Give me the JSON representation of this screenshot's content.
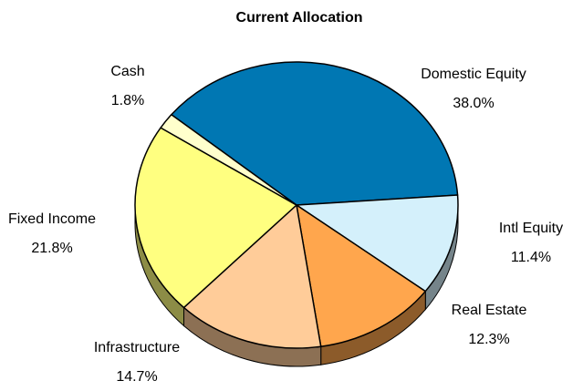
{
  "chart_data": {
    "type": "pie",
    "title": "Current Allocation",
    "categories": [
      "Domestic Equity",
      "Intl Equity",
      "Real Estate",
      "Infrastructure",
      "Fixed Income",
      "Cash"
    ],
    "values": [
      38.0,
      11.4,
      12.3,
      14.7,
      21.8,
      1.8
    ],
    "value_labels": [
      "38.0%",
      "11.4%",
      "12.3%",
      "14.7%",
      "21.8%",
      "1.8%"
    ],
    "colors": [
      "#0077b3",
      "#d4f0fb",
      "#ffa64d",
      "#ffcc99",
      "#ffff80",
      "#ffffcc"
    ]
  }
}
